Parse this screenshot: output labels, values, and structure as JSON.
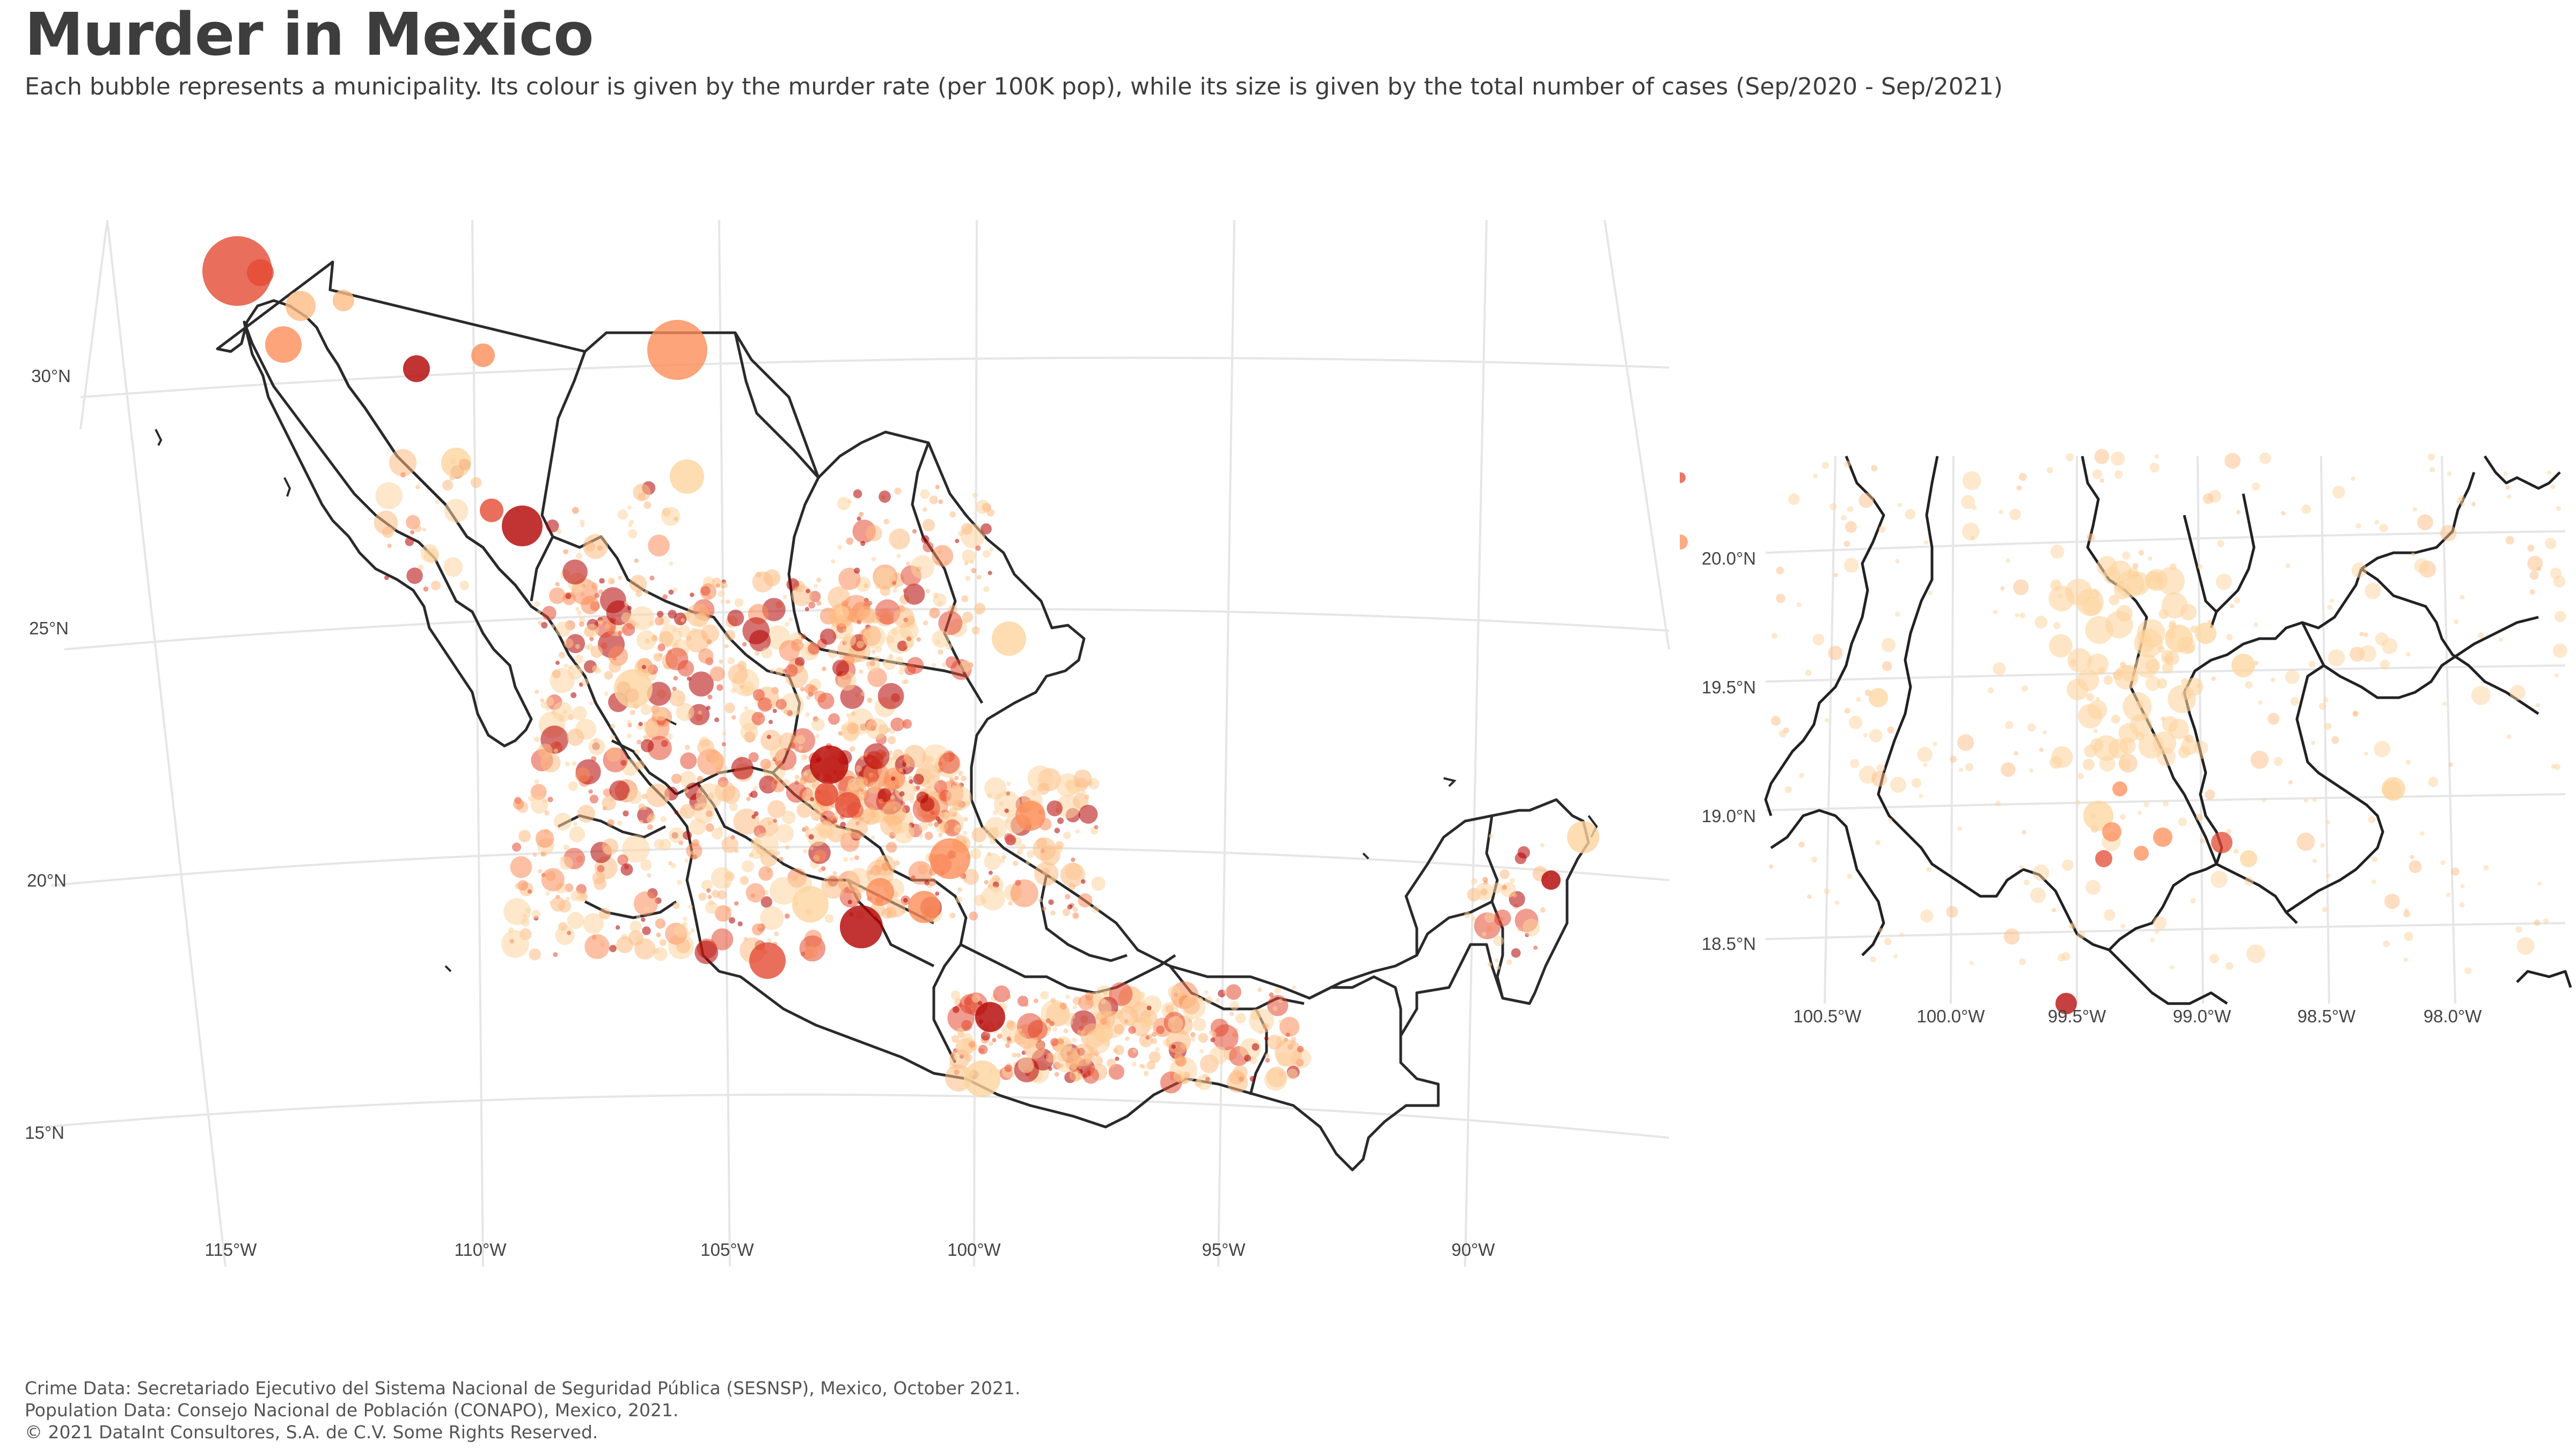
{
  "title": "Murder in Mexico",
  "subtitle": "Each bubble represents a municipality. Its colour is given by the murder rate (per 100K pop), while its size is given by the total number of cases (Sep/2020 - Sep/2021)",
  "main_map": {
    "lat_ticks": [
      "30°N",
      "25°N",
      "20°N",
      "15°N"
    ],
    "lon_ticks": [
      "115°W",
      "110°W",
      "105°W",
      "100°W",
      "95°W",
      "90°W"
    ]
  },
  "inset_map": {
    "lat_ticks": [
      "20.0°N",
      "19.5°N",
      "19.0°N",
      "18.5°N"
    ],
    "lon_ticks": [
      "100.5°W",
      "100.0°W",
      "99.5°W",
      "99.0°W",
      "98.5°W",
      "98.0°W"
    ]
  },
  "colors": {
    "low_rate": "#fdd49e",
    "mid_low_rate": "#fdbb84",
    "mid_rate": "#fc8d59",
    "high_rate": "#e34a33",
    "very_high_rate": "#b30000",
    "border": "#222222",
    "grid": "#e6e6e6"
  },
  "caption": {
    "line1": "Crime Data: Secretariado Ejecutivo del Sistema Nacional de Seguridad Pública (SESNSP), Mexico, October 2021.",
    "line2": "Population Data: Consejo Nacional de Población (CONAPO), Mexico, 2021.",
    "line3": "© 2021 DataInt Consultores, S.A. de C.V. Some Rights Reserved."
  }
}
